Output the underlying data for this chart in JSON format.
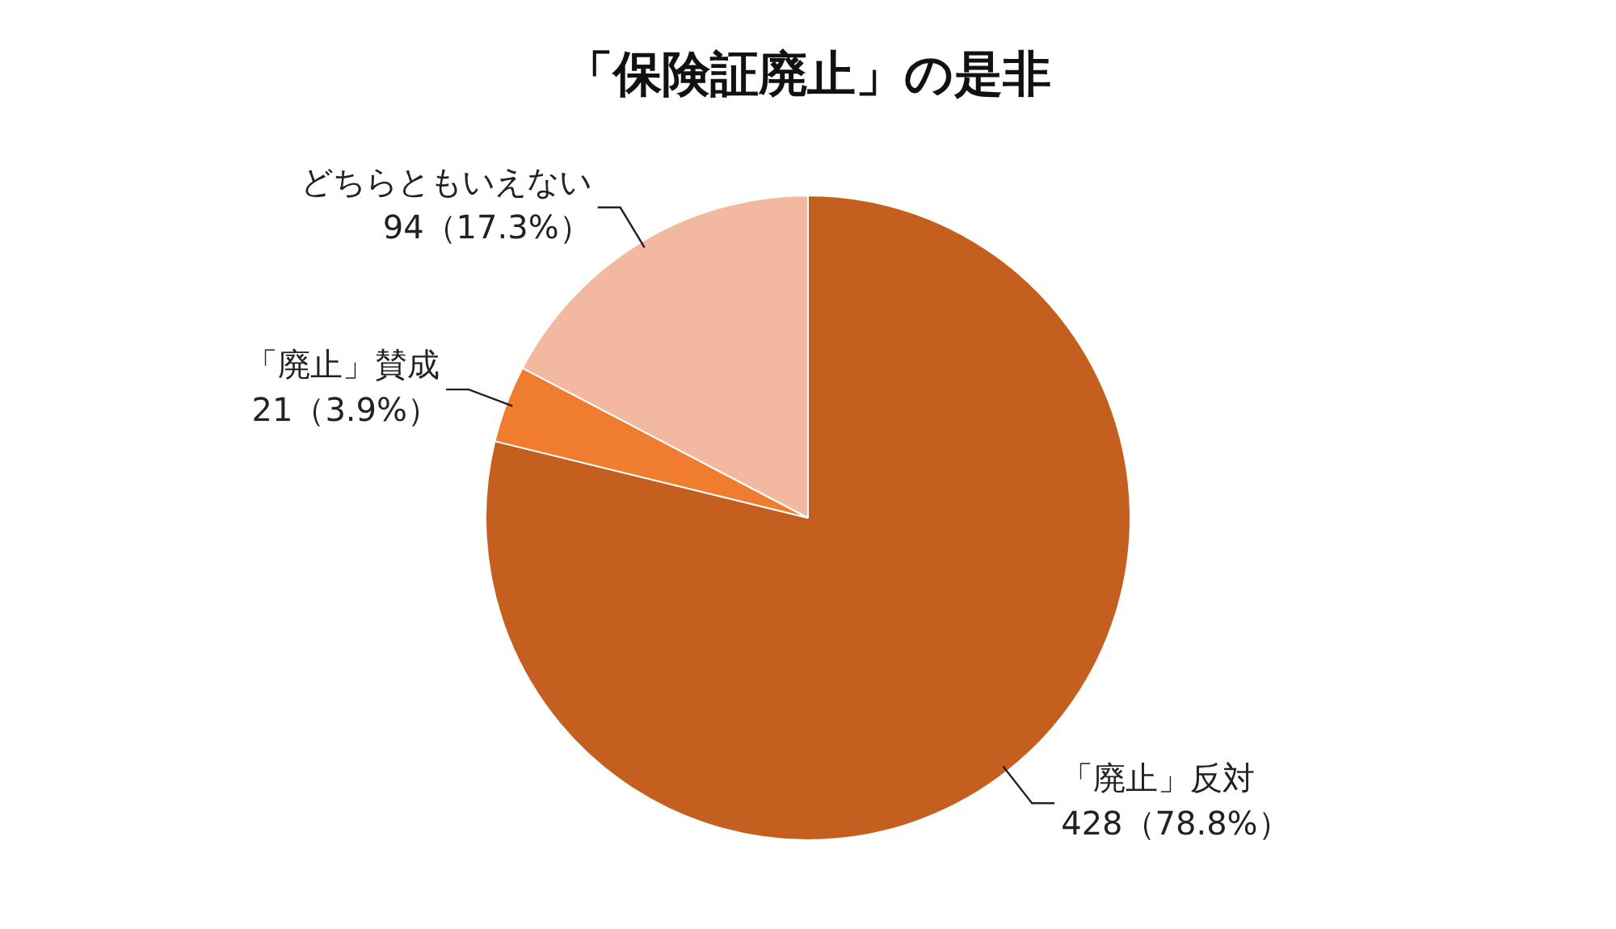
{
  "chart_data": {
    "type": "pie",
    "title": "「保険証廃止」の是非",
    "categories": [
      "「廃止」反対",
      "「廃止」賛成",
      "どちらともいえない"
    ],
    "values": [
      428,
      21,
      94
    ],
    "value_labels": [
      "428（78.8%）",
      "21（3.9%）",
      "94（17.3%）"
    ],
    "colors": [
      "#c55f1f",
      "#f07c30",
      "#f2b8a0"
    ],
    "legend": false
  }
}
